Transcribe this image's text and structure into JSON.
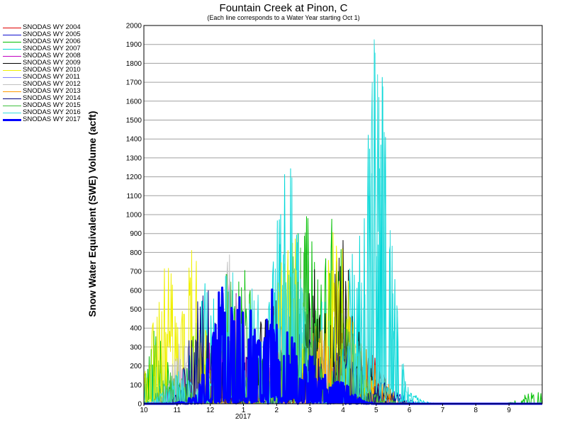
{
  "chart_data": {
    "type": "line",
    "title": "Fountain Creek at Pinon, C",
    "subtitle": "(Each line corresponds to a Water Year starting Oct 1)",
    "ylabel": "Snow Water Equivalent (SWE) Volume (acft)",
    "xlabel": "",
    "x_year_label": "2017",
    "ylim": [
      0,
      2000
    ],
    "y_ticks": [
      0,
      100,
      200,
      300,
      400,
      500,
      600,
      700,
      800,
      900,
      1000,
      1100,
      1200,
      1300,
      1400,
      1500,
      1600,
      1700,
      1800,
      1900,
      2000
    ],
    "x_ticks": [
      {
        "label": "10",
        "month": 0
      },
      {
        "label": "11",
        "month": 1
      },
      {
        "label": "12",
        "month": 2
      },
      {
        "label": "1",
        "month": 3
      },
      {
        "label": "2",
        "month": 4
      },
      {
        "label": "3",
        "month": 5
      },
      {
        "label": "4",
        "month": 6
      },
      {
        "label": "5",
        "month": 7
      },
      {
        "label": "6",
        "month": 8
      },
      {
        "label": "7",
        "month": 9
      },
      {
        "label": "8",
        "month": 10
      },
      {
        "label": "9",
        "month": 11
      }
    ],
    "grid": true,
    "legend_position": "top-left, outside plot",
    "series": [
      {
        "name": "SNODAS WY 2004",
        "color": "#e00000",
        "bold": false,
        "peaks": [
          [
            0.9,
            30
          ],
          [
            2.3,
            150
          ],
          [
            4.2,
            300
          ],
          [
            5.5,
            250
          ],
          [
            6.8,
            280
          ]
        ]
      },
      {
        "name": "SNODAS WY 2005",
        "color": "#1010d0",
        "bold": false,
        "peaks": [
          [
            1.6,
            100
          ],
          [
            2.9,
            200
          ],
          [
            4.6,
            250
          ],
          [
            6.2,
            280
          ],
          [
            7.4,
            80
          ]
        ]
      },
      {
        "name": "SNODAS WY 2006",
        "color": "#00c000",
        "bold": false,
        "peaks": [
          [
            0.3,
            400
          ],
          [
            1.7,
            420
          ],
          [
            3.0,
            720
          ],
          [
            5.0,
            1080
          ],
          [
            5.7,
            990
          ],
          [
            11.8,
            70
          ]
        ]
      },
      {
        "name": "SNODAS WY 2007",
        "color": "#00d8d8",
        "bold": false,
        "peaks": [
          [
            0.2,
            220
          ],
          [
            1.9,
            680
          ],
          [
            4.3,
            1380
          ],
          [
            5.5,
            600
          ],
          [
            6.4,
            1060
          ],
          [
            7.0,
            1990
          ],
          [
            7.8,
            80
          ]
        ]
      },
      {
        "name": "SNODAS WY 2008",
        "color": "#c000c0",
        "bold": false,
        "peaks": [
          [
            1.2,
            200
          ],
          [
            2.5,
            790
          ],
          [
            4.0,
            300
          ],
          [
            5.1,
            220
          ]
        ]
      },
      {
        "name": "SNODAS WY 2009",
        "color": "#000000",
        "bold": false,
        "peaks": [
          [
            2.0,
            180
          ],
          [
            3.8,
            610
          ],
          [
            5.2,
            740
          ],
          [
            6.0,
            870
          ],
          [
            6.7,
            290
          ]
        ]
      },
      {
        "name": "SNODAS WY 2010",
        "color": "#f0f000",
        "bold": false,
        "peaks": [
          [
            0.7,
            790
          ],
          [
            1.4,
            880
          ],
          [
            4.4,
            1030
          ],
          [
            5.8,
            1030
          ],
          [
            6.6,
            190
          ]
        ]
      },
      {
        "name": "SNODAS WY 2011",
        "color": "#8080ff",
        "bold": false,
        "peaks": [
          [
            1.0,
            60
          ],
          [
            3.2,
            160
          ],
          [
            5.6,
            120
          ],
          [
            6.9,
            60
          ]
        ]
      },
      {
        "name": "SNODAS WY 2012",
        "color": "#c0c0c0",
        "bold": false,
        "peaks": [
          [
            1.3,
            400
          ],
          [
            2.7,
            930
          ],
          [
            4.2,
            540
          ],
          [
            5.3,
            380
          ]
        ]
      },
      {
        "name": "SNODAS WY 2013",
        "color": "#ff9900",
        "bold": false,
        "peaks": [
          [
            2.1,
            120
          ],
          [
            4.1,
            280
          ],
          [
            5.3,
            450
          ],
          [
            6.3,
            550
          ],
          [
            6.9,
            220
          ]
        ]
      },
      {
        "name": "SNODAS WY 2014",
        "color": "#000080",
        "bold": false,
        "peaks": [
          [
            1.8,
            640
          ],
          [
            3.3,
            300
          ],
          [
            4.9,
            490
          ],
          [
            6.1,
            370
          ],
          [
            7.1,
            130
          ]
        ]
      },
      {
        "name": "SNODAS WY 2015",
        "color": "#40c040",
        "bold": false,
        "peaks": [
          [
            0.9,
            180
          ],
          [
            2.6,
            720
          ],
          [
            4.7,
            1000
          ],
          [
            6.2,
            420
          ],
          [
            7.2,
            30
          ]
        ]
      },
      {
        "name": "SNODAS WY 2016",
        "color": "#33dddd",
        "bold": false,
        "peaks": [
          [
            1.1,
            200
          ],
          [
            2.6,
            770
          ],
          [
            3.4,
            660
          ],
          [
            4.3,
            1390
          ],
          [
            6.5,
            660
          ],
          [
            7.0,
            1980
          ]
        ]
      },
      {
        "name": "SNODAS WY 2017",
        "color": "#0000ff",
        "bold": true,
        "peaks": [
          [
            1.8,
            60
          ],
          [
            2.4,
            650
          ],
          [
            3.0,
            600
          ],
          [
            3.8,
            690
          ],
          [
            4.4,
            400
          ],
          [
            5.1,
            260
          ],
          [
            5.9,
            120
          ]
        ]
      }
    ]
  }
}
